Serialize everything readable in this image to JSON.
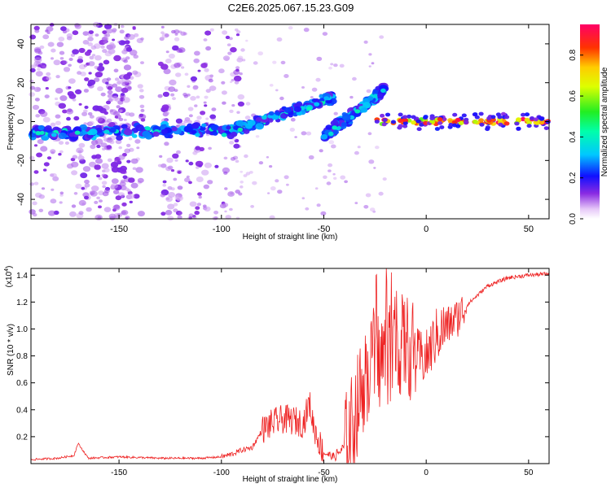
{
  "title": "C2E6.2025.067.15.23.G09",
  "colors": {
    "snr_line": "#ee2222",
    "axis": "#000000",
    "low_amp": "#d9b6f5",
    "mid_amp": "#5a10e0"
  },
  "chart_data": [
    {
      "type": "heatmap",
      "name": "spectrogram",
      "xlabel": "Height of straight line (km)",
      "ylabel": "Frequency (Hz)",
      "xlim": [
        -193,
        60
      ],
      "ylim": [
        -50,
        50
      ],
      "xticks": [
        -150,
        -100,
        -50,
        0,
        50
      ],
      "xtick_labels": [
        "-150",
        "-100",
        "-50",
        "0",
        "50"
      ],
      "yticks": [
        -40,
        -20,
        0,
        20,
        40
      ],
      "ytick_labels": [
        "-40",
        "-20",
        "0",
        "20",
        "40"
      ],
      "colorbar": {
        "label": "Normalized spectral amplitude",
        "range": [
          0,
          0.95
        ],
        "ticks": [
          0.0,
          0.2,
          0.4,
          0.6,
          0.8
        ],
        "tick_labels": [
          "0.0",
          "0.2",
          "0.4",
          "0.6",
          "0.8"
        ],
        "colormap": "rainbow (violet-blue-cyan-green-yellow-red-magenta)"
      },
      "features": [
        {
          "name": "main band",
          "x": [
            -193,
            -100
          ],
          "freq_hz": [
            -6,
            -4
          ],
          "amplitude": 0.3
        },
        {
          "name": "rising branch",
          "x": [
            -100,
            -45
          ],
          "freq_hz": [
            -6,
            12
          ],
          "amplitude": 0.35
        },
        {
          "name": "second rising branch",
          "x": [
            -50,
            -20
          ],
          "freq_hz": [
            -8,
            17
          ],
          "amplitude": 0.35
        },
        {
          "name": "steady carrier",
          "x": [
            -25,
            60
          ],
          "freq_hz": [
            0,
            0
          ],
          "amplitude": 0.9
        }
      ]
    },
    {
      "type": "line",
      "name": "snr",
      "xlabel": "Height of straight line (km)",
      "ylabel": "SNR (10 * v/v)",
      "scale_label_prefix": "(x10",
      "scale_label_exponent": "4",
      "scale_label_suffix": ")",
      "xlim": [
        -193,
        60
      ],
      "ylim": [
        0,
        1.45
      ],
      "xticks": [
        -150,
        -100,
        -50,
        0,
        50
      ],
      "xtick_labels": [
        "-150",
        "-100",
        "-50",
        "0",
        "50"
      ],
      "yticks": [
        0.2,
        0.4,
        0.6,
        0.8,
        1.0,
        1.2,
        1.4
      ],
      "ytick_labels": [
        "0.2",
        "0.4",
        "0.6",
        "0.8",
        "1.0",
        "1.2",
        "1.4"
      ],
      "series": [
        {
          "name": "SNR",
          "x": [
            -193,
            -180,
            -172,
            -170,
            -165,
            -150,
            -130,
            -110,
            -100,
            -95,
            -90,
            -85,
            -80,
            -75,
            -70,
            -65,
            -60,
            -57,
            -55,
            -52,
            -50,
            -45,
            -40,
            -35,
            -30,
            -25,
            -20,
            -15,
            -10,
            -5,
            0,
            5,
            10,
            15,
            20,
            30,
            40,
            50,
            60
          ],
          "y": [
            0.03,
            0.04,
            0.06,
            0.15,
            0.04,
            0.05,
            0.04,
            0.04,
            0.05,
            0.07,
            0.1,
            0.12,
            0.25,
            0.3,
            0.33,
            0.32,
            0.3,
            0.45,
            0.28,
            0.15,
            0.08,
            0.05,
            0.12,
            0.35,
            0.65,
            0.75,
            0.8,
            0.85,
            0.9,
            0.8,
            0.78,
            0.95,
            1.02,
            1.08,
            1.18,
            1.32,
            1.38,
            1.4,
            1.41
          ]
        }
      ]
    }
  ]
}
